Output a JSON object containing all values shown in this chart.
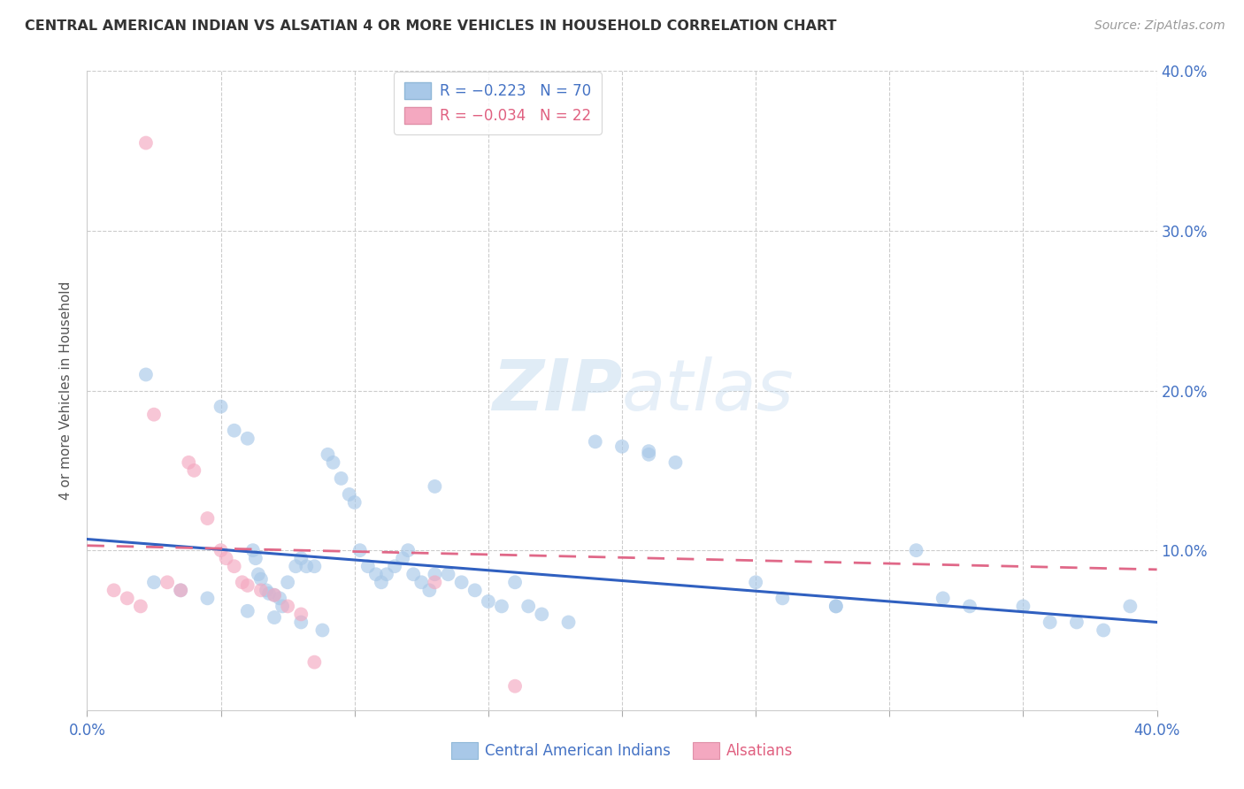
{
  "title": "CENTRAL AMERICAN INDIAN VS ALSATIAN 4 OR MORE VEHICLES IN HOUSEHOLD CORRELATION CHART",
  "source": "Source: ZipAtlas.com",
  "ylabel": "4 or more Vehicles in Household",
  "xlim": [
    0.0,
    0.4
  ],
  "ylim": [
    0.0,
    0.4
  ],
  "blue_color": "#a8c8e8",
  "pink_color": "#f4a8c0",
  "blue_line_color": "#3060c0",
  "pink_line_color": "#e06888",
  "watermark_zip": "ZIP",
  "watermark_atlas": "atlas",
  "grid_color": "#cccccc",
  "background_color": "#ffffff",
  "legend_color_blue": "#a8c8e8",
  "legend_color_pink": "#f4a8c0",
  "blue_scatter_x": [
    0.022,
    0.05,
    0.055,
    0.06,
    0.062,
    0.063,
    0.064,
    0.065,
    0.067,
    0.068,
    0.07,
    0.072,
    0.073,
    0.075,
    0.078,
    0.08,
    0.082,
    0.085,
    0.088,
    0.09,
    0.092,
    0.095,
    0.098,
    0.1,
    0.102,
    0.105,
    0.108,
    0.11,
    0.112,
    0.115,
    0.118,
    0.12,
    0.122,
    0.125,
    0.128,
    0.13,
    0.135,
    0.14,
    0.145,
    0.15,
    0.155,
    0.16,
    0.165,
    0.17,
    0.18,
    0.19,
    0.21,
    0.22,
    0.25,
    0.26,
    0.28,
    0.31,
    0.32,
    0.33,
    0.35,
    0.36,
    0.37,
    0.38,
    0.39,
    0.025,
    0.035,
    0.045,
    0.06,
    0.07,
    0.08,
    0.13,
    0.28,
    0.2,
    0.21
  ],
  "blue_scatter_y": [
    0.21,
    0.19,
    0.175,
    0.17,
    0.1,
    0.095,
    0.085,
    0.082,
    0.075,
    0.073,
    0.072,
    0.07,
    0.065,
    0.08,
    0.09,
    0.095,
    0.09,
    0.09,
    0.05,
    0.16,
    0.155,
    0.145,
    0.135,
    0.13,
    0.1,
    0.09,
    0.085,
    0.08,
    0.085,
    0.09,
    0.095,
    0.1,
    0.085,
    0.08,
    0.075,
    0.14,
    0.085,
    0.08,
    0.075,
    0.068,
    0.065,
    0.08,
    0.065,
    0.06,
    0.055,
    0.168,
    0.162,
    0.155,
    0.08,
    0.07,
    0.065,
    0.1,
    0.07,
    0.065,
    0.065,
    0.055,
    0.055,
    0.05,
    0.065,
    0.08,
    0.075,
    0.07,
    0.062,
    0.058,
    0.055,
    0.085,
    0.065,
    0.165,
    0.16
  ],
  "pink_scatter_x": [
    0.01,
    0.015,
    0.02,
    0.022,
    0.025,
    0.03,
    0.035,
    0.038,
    0.04,
    0.045,
    0.05,
    0.052,
    0.055,
    0.058,
    0.06,
    0.065,
    0.07,
    0.075,
    0.08,
    0.085,
    0.13,
    0.16
  ],
  "pink_scatter_y": [
    0.075,
    0.07,
    0.065,
    0.355,
    0.185,
    0.08,
    0.075,
    0.155,
    0.15,
    0.12,
    0.1,
    0.095,
    0.09,
    0.08,
    0.078,
    0.075,
    0.072,
    0.065,
    0.06,
    0.03,
    0.08,
    0.015
  ],
  "blue_trend_x": [
    0.0,
    0.4
  ],
  "blue_trend_y": [
    0.107,
    0.055
  ],
  "pink_trend_x": [
    0.0,
    0.4
  ],
  "pink_trend_y": [
    0.103,
    0.088
  ]
}
